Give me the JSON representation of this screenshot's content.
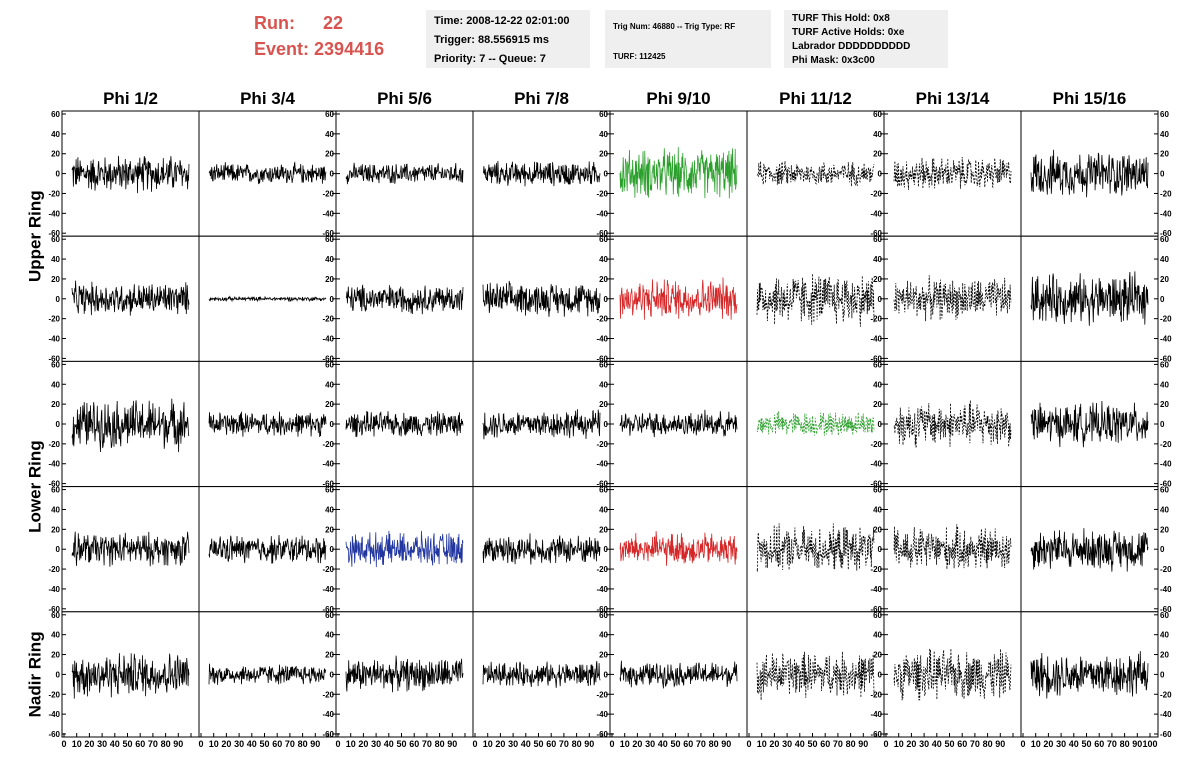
{
  "header": {
    "run_label": "Run:",
    "run_value": "22",
    "event_label": "Event:",
    "event_value": "2394416",
    "time": "Time: 2008-12-22 02:01:00",
    "trigger": "Trigger: 88.556915 ms",
    "priority": "Priority: 7 -- Queue: 7",
    "trig_num": "Trig Num: 46880 -- Trig Type: RF",
    "turf": "TURF: 112425",
    "turf_this_hold": "TURF This Hold: 0x8",
    "turf_active_holds": "TURF Active Holds: 0xe",
    "labrador": "Labrador DDDDDDDDDD",
    "phi_mask": "Phi Mask: 0x3c00",
    "run_color": "#d9534f"
  },
  "chart_data": {
    "type": "line",
    "columns": [
      "Phi 1/2",
      "Phi 3/4",
      "Phi 5/6",
      "Phi 7/8",
      "Phi 9/10",
      "Phi 11/12",
      "Phi 13/14",
      "Phi 15/16"
    ],
    "rows": [
      "Upper Ring",
      "Lower Ring",
      "Nadir Ring"
    ],
    "ylim": [
      -60,
      60
    ],
    "yticks": [
      -60,
      -40,
      -20,
      0,
      20,
      40,
      60
    ],
    "xlim": [
      0,
      100
    ],
    "xtick_labels": [
      "0",
      "10",
      "20",
      "30",
      "40",
      "50",
      "60",
      "70",
      "80",
      "90",
      "100"
    ],
    "grid": false,
    "panels": [
      [
        {
          "color": "#000000",
          "style": "solid",
          "amp": 18
        },
        {
          "color": "#000000",
          "style": "solid",
          "amp": 10
        },
        {
          "color": "#000000",
          "style": "solid",
          "amp": 10
        },
        {
          "color": "#000000",
          "style": "solid",
          "amp": 12
        },
        {
          "color": "#2ca02c",
          "style": "solid",
          "amp": 24
        },
        {
          "color": "#000000",
          "style": "dotted",
          "amp": 12
        },
        {
          "color": "#000000",
          "style": "dotted",
          "amp": 16
        },
        {
          "color": "#000000",
          "style": "solid",
          "amp": 22
        }
      ],
      [
        {
          "color": "#000000",
          "style": "solid",
          "amp": 16
        },
        {
          "color": "#000000",
          "style": "solid",
          "amp": 2
        },
        {
          "color": "#000000",
          "style": "solid",
          "amp": 14
        },
        {
          "color": "#000000",
          "style": "solid",
          "amp": 16
        },
        {
          "color": "#d62728",
          "style": "solid",
          "amp": 20
        },
        {
          "color": "#000000",
          "style": "dotted",
          "amp": 26
        },
        {
          "color": "#000000",
          "style": "dotted",
          "amp": 20
        },
        {
          "color": "#000000",
          "style": "solid",
          "amp": 24
        }
      ],
      [
        {
          "color": "#000000",
          "style": "solid",
          "amp": 24
        },
        {
          "color": "#000000",
          "style": "solid",
          "amp": 12
        },
        {
          "color": "#000000",
          "style": "solid",
          "amp": 12
        },
        {
          "color": "#000000",
          "style": "solid",
          "amp": 14
        },
        {
          "color": "#000000",
          "style": "solid",
          "amp": 12
        },
        {
          "color": "#2ca02c",
          "style": "dotted",
          "amp": 12
        },
        {
          "color": "#000000",
          "style": "dotted",
          "amp": 22
        },
        {
          "color": "#000000",
          "style": "solid",
          "amp": 20
        }
      ],
      [
        {
          "color": "#000000",
          "style": "solid",
          "amp": 16
        },
        {
          "color": "#000000",
          "style": "solid",
          "amp": 14
        },
        {
          "color": "#2236a0",
          "style": "solid",
          "amp": 16
        },
        {
          "color": "#000000",
          "style": "solid",
          "amp": 14
        },
        {
          "color": "#d62728",
          "style": "solid",
          "amp": 16
        },
        {
          "color": "#000000",
          "style": "dotted",
          "amp": 22
        },
        {
          "color": "#000000",
          "style": "dotted",
          "amp": 22
        },
        {
          "color": "#000000",
          "style": "solid",
          "amp": 20
        }
      ],
      [
        {
          "color": "#000000",
          "style": "solid",
          "amp": 22
        },
        {
          "color": "#000000",
          "style": "solid",
          "amp": 10
        },
        {
          "color": "#000000",
          "style": "solid",
          "amp": 16
        },
        {
          "color": "#000000",
          "style": "solid",
          "amp": 12
        },
        {
          "color": "#000000",
          "style": "solid",
          "amp": 12
        },
        {
          "color": "#000000",
          "style": "dotted",
          "amp": 22
        },
        {
          "color": "#000000",
          "style": "dotted",
          "amp": 24
        },
        {
          "color": "#000000",
          "style": "solid",
          "amp": 22
        }
      ]
    ]
  }
}
